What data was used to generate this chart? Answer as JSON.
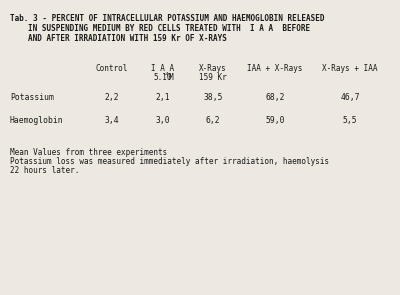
{
  "title_line1": "Tab. 3 - PERCENT OF INTRACELLULAR POTASSIUM AND HAEMOGLOBIN RELEASED",
  "title_line2": "IN SUSPENDING MEDIUM BY RED CELLS TREATED WITH  I A A  BEFORE",
  "title_line3": "AND AFTER IRRADIATION WITH 159 Kr OF X-RAYS",
  "col_headers": [
    "Control",
    "I A A",
    "X-Rays",
    "IAA + X-Rays",
    "X-Rays + IAA"
  ],
  "col_subheader_iaa": "5.10",
  "col_subheader_iaa_exp": "-4",
  "col_subheader_iaa_unit": "M",
  "col_subheader_xray": "159 Kr",
  "row_labels": [
    "Potassium",
    "Haemoglobin"
  ],
  "data": [
    [
      "2,2",
      "2,1",
      "38,5",
      "68,2",
      "46,7"
    ],
    [
      "3,4",
      "3,0",
      "6,2",
      "59,0",
      "5,5"
    ]
  ],
  "footnote_line1": "Mean Values from three experiments",
  "footnote_line2": "Potassium loss was measured immediately after irradiation, haemolysis",
  "footnote_line3": "22 hours later.",
  "bg_color": "#ede9e0",
  "text_color": "#1a1a1a"
}
